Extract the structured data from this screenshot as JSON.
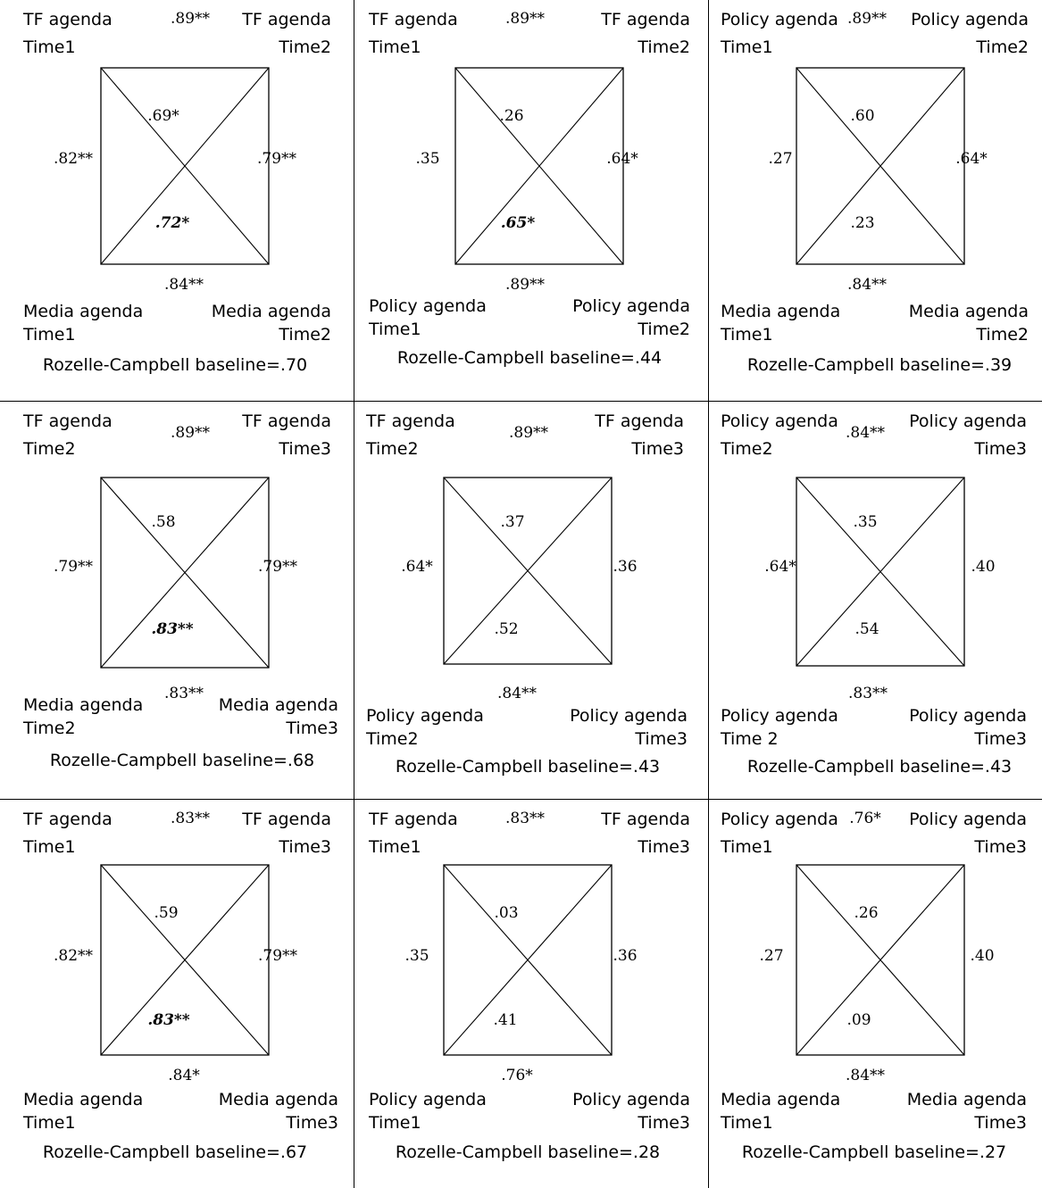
{
  "panels": [
    {
      "top_left": "TF agenda",
      "top_left_time": "Time1",
      "top_right": "TF agenda",
      "top_right_time": "Time2",
      "bottom_left": "Media agenda",
      "bottom_left_time": "Time1",
      "bottom_right": "Media agenda",
      "bottom_right_time": "Time2",
      "top": ".89**",
      "bottom": ".84**",
      "left": ".82**",
      "right": ".79**",
      "cross_top": ".69*",
      "cross_bottom": ".72*",
      "cross_bottom_emphasized": true,
      "baseline": "Rozelle-Campbell baseline=.70"
    },
    {
      "top_left": "TF agenda",
      "top_left_time": "Time1",
      "top_right": "TF agenda",
      "top_right_time": "Time2",
      "bottom_left": "Policy agenda",
      "bottom_left_time": "Time1",
      "bottom_right": "Policy agenda",
      "bottom_right_time": "Time2",
      "top": ".89**",
      "bottom": ".89**",
      "left": ".35",
      "right": ".64*",
      "cross_top": ".26",
      "cross_bottom": ".65*",
      "cross_bottom_emphasized": true,
      "baseline": "Rozelle-Campbell baseline=.44"
    },
    {
      "top_left": "Policy agenda",
      "top_left_time": "Time1",
      "top_right": "Policy agenda",
      "top_right_time": "Time2",
      "bottom_left": "Media agenda",
      "bottom_left_time": "Time1",
      "bottom_right": "Media agenda",
      "bottom_right_time": "Time2",
      "top": ".89**",
      "bottom": ".84**",
      "left": ".27",
      "right": ".64*",
      "cross_top": ".60",
      "cross_bottom": ".23",
      "cross_bottom_emphasized": false,
      "baseline": "Rozelle-Campbell baseline=.39"
    },
    {
      "top_left": "TF agenda",
      "top_left_time": "Time2",
      "top_right": "TF agenda",
      "top_right_time": "Time3",
      "bottom_left": "Media agenda",
      "bottom_left_time": "Time2",
      "bottom_right": "Media agenda",
      "bottom_right_time": "Time3",
      "top": ".89**",
      "bottom": ".83**",
      "left": ".79**",
      "right": ".79**",
      "cross_top": ".58",
      "cross_bottom": ".83**",
      "cross_bottom_emphasized": true,
      "baseline": "Rozelle-Campbell baseline=.68"
    },
    {
      "top_left": "TF agenda",
      "top_left_time": "Time2",
      "top_right": "TF agenda",
      "top_right_time": "Time3",
      "bottom_left": "Policy agenda",
      "bottom_left_time": "Time2",
      "bottom_right": "Policy agenda",
      "bottom_right_time": "Time3",
      "top": ".89**",
      "bottom": ".84**",
      "left": ".64*",
      "right": ".36",
      "cross_top": ".37",
      "cross_bottom": ".52",
      "cross_bottom_emphasized": false,
      "baseline": "Rozelle-Campbell baseline=.43"
    },
    {
      "top_left": "Policy agenda",
      "top_left_time": "Time2",
      "top_right": "Policy agenda",
      "top_right_time": "Time3",
      "bottom_left": "Policy agenda",
      "bottom_left_time": "Time 2",
      "bottom_right": "Policy agenda",
      "bottom_right_time": "Time3",
      "top": ".84**",
      "bottom": ".83**",
      "left": ".64*",
      "right": ".40",
      "cross_top": ".35",
      "cross_bottom": ".54",
      "cross_bottom_emphasized": false,
      "baseline": "Rozelle-Campbell baseline=.43"
    },
    {
      "top_left": "TF agenda",
      "top_left_time": "Time1",
      "top_right": "TF agenda",
      "top_right_time": "Time3",
      "bottom_left": "Media agenda",
      "bottom_left_time": "Time1",
      "bottom_right": "Media agenda",
      "bottom_right_time": "Time3",
      "top": ".83**",
      "bottom": ".84*",
      "left": ".82**",
      "right": ".79**",
      "cross_top": ".59",
      "cross_bottom": ".83**",
      "cross_bottom_emphasized": true,
      "baseline": "Rozelle-Campbell baseline=.67"
    },
    {
      "top_left": "TF agenda",
      "top_left_time": "Time1",
      "top_right": "TF agenda",
      "top_right_time": "Time3",
      "bottom_left": "Policy agenda",
      "bottom_left_time": "Time1",
      "bottom_right": "Policy agenda",
      "bottom_right_time": "Time3",
      "top": ".83**",
      "bottom": ".76*",
      "left": ".35",
      "right": ".36",
      "cross_top": ".03",
      "cross_bottom": ".41",
      "cross_bottom_emphasized": false,
      "baseline": "Rozelle-Campbell baseline=.28"
    },
    {
      "top_left": "Policy agenda",
      "top_left_time": "Time1",
      "top_right": "Policy agenda",
      "top_right_time": "Time3",
      "bottom_left": "Media agenda",
      "bottom_left_time": "Time1",
      "bottom_right": "Media agenda",
      "bottom_right_time": "Time3",
      "top": ".76*",
      "bottom": ".84**",
      "left": ".27",
      "right": ".40",
      "cross_top": ".26",
      "cross_bottom": ".09",
      "cross_bottom_emphasized": false,
      "baseline": "Rozelle-Campbell baseline=.27"
    }
  ]
}
